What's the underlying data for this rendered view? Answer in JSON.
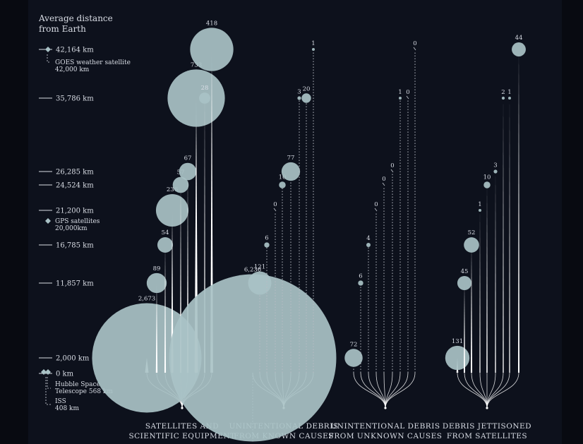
{
  "chart_data": {
    "type": "scatter",
    "title": "Average distance\nfrom Earth",
    "colors": {
      "background": "#0d111c",
      "bubble": "#a9c2c6",
      "stem": "#ffffff",
      "text": "#d9dde5",
      "dotted": "#b8bcc4"
    },
    "y_ticks": [
      "42,164 km",
      "35,786 km",
      "26,285 km",
      "24,524 km",
      "21,200 km",
      "16,785 km",
      "11,857 km",
      "2,000 km",
      "0 km"
    ],
    "reference_markers": [
      {
        "name": "GOES weather satellite",
        "detail": "42,000 km"
      },
      {
        "name": "GPS satellites",
        "detail": "20,000km"
      },
      {
        "name": "Hubble Space Telescope",
        "detail": "568 km"
      },
      {
        "name": "ISS",
        "detail": "408 km"
      }
    ],
    "groups": [
      {
        "label": "SATELLITES AND\nSCIENTIFIC EQUIPMENT",
        "style": "solid",
        "points": [
          {
            "distance": "2,000 km",
            "count": 2673,
            "label": "2,673"
          },
          {
            "distance": "11,857 km",
            "count": 89,
            "label": "89"
          },
          {
            "distance": "16,785 km",
            "count": 54,
            "label": "54"
          },
          {
            "distance": "21,200 km",
            "count": 236,
            "label": "236"
          },
          {
            "distance": "24,524 km",
            "count": 57,
            "label": "57"
          },
          {
            "distance": "26,285 km",
            "count": 67,
            "label": "67"
          },
          {
            "distance": "35,786 km",
            "count": 733,
            "label": "733"
          },
          {
            "distance": "35,786 km",
            "count": 28,
            "label": "28"
          },
          {
            "distance": "42,164 km",
            "count": 418,
            "label": "418"
          }
        ]
      },
      {
        "label": "UNINTENTIONAL DEBRIS\nFROM KNOWN CAUSES",
        "style": "dotted",
        "points": [
          {
            "distance": "2,000 km",
            "count": 6236,
            "label": "6,236"
          },
          {
            "distance": "11,857 km",
            "count": 121,
            "label": "121"
          },
          {
            "distance": "16,785 km",
            "count": 6,
            "label": "6"
          },
          {
            "distance": "21,200 km",
            "count": 0,
            "label": "0"
          },
          {
            "distance": "24,524 km",
            "count": 10,
            "label": "10"
          },
          {
            "distance": "26,285 km",
            "count": 77,
            "label": "77"
          },
          {
            "distance": "35,786 km",
            "count": 3,
            "label": "3"
          },
          {
            "distance": "35,786 km",
            "count": 20,
            "label": "20"
          },
          {
            "distance": "42,164 km",
            "count": 1,
            "label": "1"
          }
        ]
      },
      {
        "label": "UNINTENTIONAL DEBRIS\nFROM UNKNOWN CAUSES",
        "style": "dotted",
        "points": [
          {
            "distance": "2,000 km",
            "count": 72,
            "label": "72"
          },
          {
            "distance": "11,857 km",
            "count": 6,
            "label": "6"
          },
          {
            "distance": "16,785 km",
            "count": 4,
            "label": "4"
          },
          {
            "distance": "21,200 km",
            "count": 0,
            "label": "0"
          },
          {
            "distance": "24,524 km",
            "count": 0,
            "label": "0"
          },
          {
            "distance": "26,285 km",
            "count": 0,
            "label": "0"
          },
          {
            "distance": "35,786 km",
            "count": 1,
            "label": "1"
          },
          {
            "distance": "35,786 km",
            "count": 0,
            "label": "0"
          },
          {
            "distance": "42,164 km",
            "count": 0,
            "label": "0"
          }
        ]
      },
      {
        "label": "DEBRIS JETTISONED\nFROM SATELLITES",
        "style": "solid",
        "points": [
          {
            "distance": "2,000 km",
            "count": 131,
            "label": "131"
          },
          {
            "distance": "11,857 km",
            "count": 45,
            "label": "45"
          },
          {
            "distance": "16,785 km",
            "count": 52,
            "label": "52"
          },
          {
            "distance": "21,200 km",
            "count": 1,
            "label": "1"
          },
          {
            "distance": "24,524 km",
            "count": 10,
            "label": "10"
          },
          {
            "distance": "26,285 km",
            "count": 3,
            "label": "3"
          },
          {
            "distance": "35,786 km",
            "count": 2,
            "label": "2"
          },
          {
            "distance": "35,786 km",
            "count": 1,
            "label": "1"
          },
          {
            "distance": "42,164 km",
            "count": 44,
            "label": "44"
          }
        ]
      }
    ]
  }
}
